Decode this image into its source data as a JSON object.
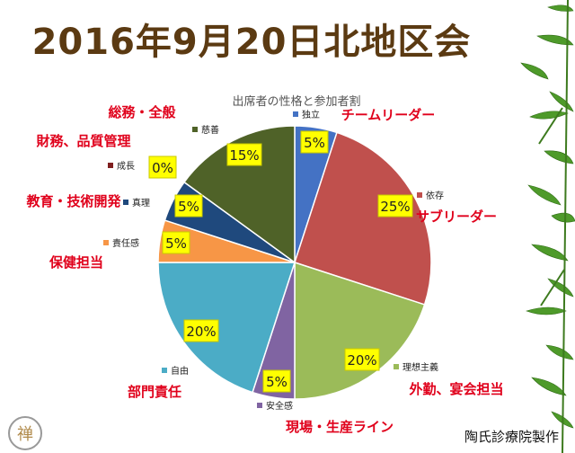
{
  "slide": {
    "title": "2016年9月20日北地区会",
    "footer": "陶氏診療院製作",
    "seal_char": "禅"
  },
  "chart_data": {
    "type": "pie",
    "title": "出席者の性格と参加者割",
    "slices": [
      {
        "label": "独立",
        "value": 5,
        "display": "5%",
        "color": "#4472c4",
        "group": "チームリーダー"
      },
      {
        "label": "依存",
        "value": 25,
        "display": "25%",
        "color": "#c0504d",
        "group": "サブリーダー"
      },
      {
        "label": "理想主義",
        "value": 20,
        "display": "20%",
        "color": "#9bbb59",
        "group": "外勤、宴会担当"
      },
      {
        "label": "安全感",
        "value": 5,
        "display": "5%",
        "color": "#8064a2",
        "group": "現場・生産ライン"
      },
      {
        "label": "自由",
        "value": 20,
        "display": "20%",
        "color": "#4bacc6",
        "group": "部門責任"
      },
      {
        "label": "責任感",
        "value": 5,
        "display": "5%",
        "color": "#f79646",
        "group": "保健担当"
      },
      {
        "label": "真理",
        "value": 5,
        "display": "5%",
        "color": "#1f497d",
        "group": "教育・技術開発"
      },
      {
        "label": "成長",
        "value": 0,
        "display": "0%",
        "color": "#7f1f1f",
        "group": "財務、品質管理"
      },
      {
        "label": "慈善",
        "value": 15,
        "display": "15%",
        "color": "#4f6228",
        "group": "総務・全般"
      }
    ]
  },
  "colors": {
    "title": "#5b3a12",
    "group_label": "#e0001b",
    "value_box": "#ffff00",
    "value_box_border": "#c9c900"
  }
}
